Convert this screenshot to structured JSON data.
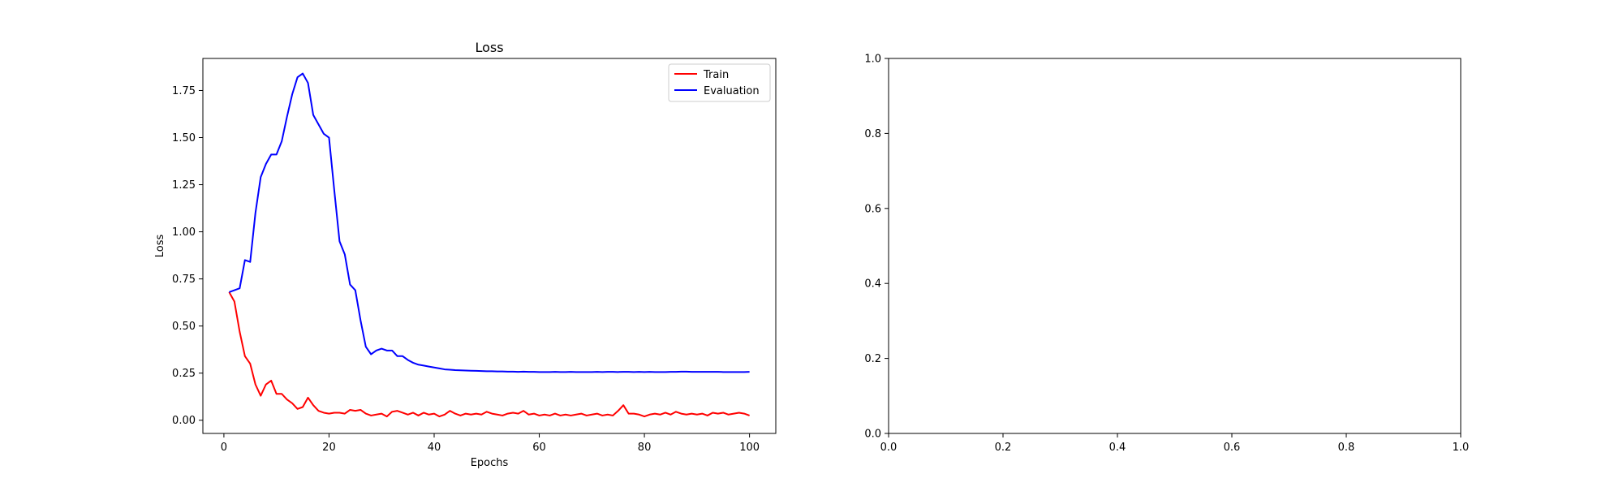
{
  "chart_data": [
    {
      "type": "line",
      "title": "Loss",
      "xlabel": "Epochs",
      "ylabel": "Loss",
      "xlim": [
        -4,
        105
      ],
      "ylim": [
        -0.07,
        1.92
      ],
      "xticks": [
        "0",
        "20",
        "40",
        "60",
        "80",
        "100"
      ],
      "yticks": [
        "0.00",
        "0.25",
        "0.50",
        "0.75",
        "1.00",
        "1.25",
        "1.50",
        "1.75"
      ],
      "legend": "top-right",
      "series": [
        {
          "name": "Train",
          "color": "#ff0000",
          "x": [
            1,
            2,
            3,
            4,
            5,
            6,
            7,
            8,
            9,
            10,
            11,
            12,
            13,
            14,
            15,
            16,
            17,
            18,
            19,
            20,
            21,
            22,
            23,
            24,
            25,
            26,
            27,
            28,
            29,
            30,
            31,
            32,
            33,
            34,
            35,
            36,
            37,
            38,
            39,
            40,
            41,
            42,
            43,
            44,
            45,
            46,
            47,
            48,
            49,
            50,
            51,
            52,
            53,
            54,
            55,
            56,
            57,
            58,
            59,
            60,
            61,
            62,
            63,
            64,
            65,
            66,
            67,
            68,
            69,
            70,
            71,
            72,
            73,
            74,
            75,
            76,
            77,
            78,
            79,
            80,
            81,
            82,
            83,
            84,
            85,
            86,
            87,
            88,
            89,
            90,
            91,
            92,
            93,
            94,
            95,
            96,
            97,
            98,
            99,
            100
          ],
          "values": [
            0.68,
            0.63,
            0.47,
            0.34,
            0.3,
            0.19,
            0.13,
            0.19,
            0.21,
            0.14,
            0.14,
            0.11,
            0.09,
            0.06,
            0.07,
            0.12,
            0.08,
            0.05,
            0.04,
            0.035,
            0.04,
            0.04,
            0.035,
            0.055,
            0.05,
            0.055,
            0.035,
            0.025,
            0.03,
            0.035,
            0.02,
            0.045,
            0.05,
            0.04,
            0.03,
            0.04,
            0.025,
            0.04,
            0.03,
            0.035,
            0.02,
            0.03,
            0.05,
            0.035,
            0.025,
            0.035,
            0.03,
            0.035,
            0.03,
            0.045,
            0.035,
            0.03,
            0.025,
            0.035,
            0.04,
            0.035,
            0.05,
            0.03,
            0.035,
            0.025,
            0.03,
            0.025,
            0.035,
            0.025,
            0.03,
            0.025,
            0.03,
            0.035,
            0.025,
            0.03,
            0.035,
            0.025,
            0.03,
            0.025,
            0.05,
            0.08,
            0.035,
            0.035,
            0.03,
            0.02,
            0.03,
            0.035,
            0.03,
            0.04,
            0.03,
            0.045,
            0.035,
            0.03,
            0.035,
            0.03,
            0.035,
            0.025,
            0.04,
            0.035,
            0.04,
            0.03,
            0.035,
            0.04,
            0.035,
            0.025
          ]
        },
        {
          "name": "Evaluation",
          "color": "#0000ff",
          "x": [
            1,
            2,
            3,
            4,
            5,
            6,
            7,
            8,
            9,
            10,
            11,
            12,
            13,
            14,
            15,
            16,
            17,
            18,
            19,
            20,
            21,
            22,
            23,
            24,
            25,
            26,
            27,
            28,
            29,
            30,
            31,
            32,
            33,
            34,
            35,
            36,
            37,
            38,
            39,
            40,
            41,
            42,
            43,
            44,
            45,
            46,
            47,
            48,
            49,
            50,
            51,
            52,
            53,
            54,
            55,
            56,
            57,
            58,
            59,
            60,
            61,
            62,
            63,
            64,
            65,
            66,
            67,
            68,
            69,
            70,
            71,
            72,
            73,
            74,
            75,
            76,
            77,
            78,
            79,
            80,
            81,
            82,
            83,
            84,
            85,
            86,
            87,
            88,
            89,
            90,
            91,
            92,
            93,
            94,
            95,
            96,
            97,
            98,
            99,
            100
          ],
          "values": [
            0.68,
            0.69,
            0.7,
            0.85,
            0.84,
            1.1,
            1.29,
            1.36,
            1.41,
            1.41,
            1.48,
            1.61,
            1.73,
            1.82,
            1.84,
            1.79,
            1.62,
            1.57,
            1.52,
            1.5,
            1.22,
            0.95,
            0.88,
            0.72,
            0.69,
            0.53,
            0.39,
            0.35,
            0.37,
            0.38,
            0.37,
            0.37,
            0.34,
            0.34,
            0.32,
            0.305,
            0.295,
            0.29,
            0.285,
            0.28,
            0.275,
            0.27,
            0.268,
            0.266,
            0.265,
            0.264,
            0.263,
            0.262,
            0.261,
            0.26,
            0.26,
            0.259,
            0.259,
            0.258,
            0.258,
            0.257,
            0.258,
            0.257,
            0.257,
            0.256,
            0.256,
            0.256,
            0.257,
            0.256,
            0.256,
            0.257,
            0.256,
            0.256,
            0.256,
            0.256,
            0.257,
            0.256,
            0.257,
            0.257,
            0.256,
            0.257,
            0.257,
            0.256,
            0.257,
            0.256,
            0.257,
            0.256,
            0.256,
            0.256,
            0.257,
            0.257,
            0.258,
            0.258,
            0.257,
            0.257,
            0.257,
            0.257,
            0.257,
            0.257,
            0.256,
            0.256,
            0.256,
            0.256,
            0.256,
            0.257
          ]
        }
      ]
    },
    {
      "type": "line",
      "title": "",
      "xlabel": "",
      "ylabel": "",
      "xlim": [
        0,
        1
      ],
      "ylim": [
        0,
        1
      ],
      "xticks": [
        "0.0",
        "0.2",
        "0.4",
        "0.6",
        "0.8",
        "1.0"
      ],
      "yticks": [
        "0.0",
        "0.2",
        "0.4",
        "0.6",
        "0.8",
        "1.0"
      ],
      "series": []
    }
  ]
}
